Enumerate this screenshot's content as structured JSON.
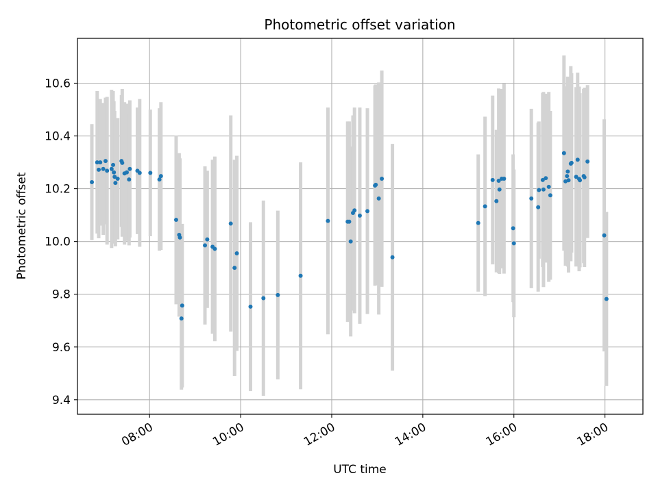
{
  "chart_data": {
    "type": "scatter",
    "title": "Photometric offset variation",
    "xlabel": "UTC time",
    "ylabel": "Photometric offset",
    "grid": true,
    "xlim": [
      "06:25",
      "18:50"
    ],
    "ylim": [
      9.345,
      10.77
    ],
    "xticks": [
      "08:00",
      "10:00",
      "12:00",
      "14:00",
      "16:00",
      "18:00"
    ],
    "yticks": [
      9.4,
      9.6,
      9.8,
      10.0,
      10.2,
      10.4,
      10.6
    ],
    "colors": {
      "point": "#1f77b4",
      "errorbar": "#d3d3d3",
      "grid": "#b0b0b0"
    },
    "points": [
      {
        "x": "06:44",
        "y": 10.225,
        "yerr": 0.22
      },
      {
        "x": "06:51",
        "y": 10.3,
        "yerr": 0.27
      },
      {
        "x": "06:53",
        "y": 10.272,
        "yerr": 0.26
      },
      {
        "x": "06:55",
        "y": 10.3,
        "yerr": 0.24
      },
      {
        "x": "06:59",
        "y": 10.275,
        "yerr": 0.25
      },
      {
        "x": "07:02",
        "y": 10.305,
        "yerr": 0.24
      },
      {
        "x": "07:04",
        "y": 10.268,
        "yerr": 0.28
      },
      {
        "x": "07:10",
        "y": 10.275,
        "yerr": 0.3
      },
      {
        "x": "07:12",
        "y": 10.29,
        "yerr": 0.28
      },
      {
        "x": "07:13",
        "y": 10.262,
        "yerr": 0.27
      },
      {
        "x": "07:14",
        "y": 10.245,
        "yerr": 0.25
      },
      {
        "x": "07:15",
        "y": 10.222,
        "yerr": 0.24
      },
      {
        "x": "07:18",
        "y": 10.238,
        "yerr": 0.23
      },
      {
        "x": "07:23",
        "y": 10.305,
        "yerr": 0.25
      },
      {
        "x": "07:24",
        "y": 10.298,
        "yerr": 0.28
      },
      {
        "x": "07:27",
        "y": 10.258,
        "yerr": 0.27
      },
      {
        "x": "07:30",
        "y": 10.262,
        "yerr": 0.26
      },
      {
        "x": "07:33",
        "y": 10.235,
        "yerr": 0.25
      },
      {
        "x": "07:34",
        "y": 10.275,
        "yerr": 0.26
      },
      {
        "x": "07:44",
        "y": 10.268,
        "yerr": 0.24
      },
      {
        "x": "07:47",
        "y": 10.26,
        "yerr": 0.28
      },
      {
        "x": "08:01",
        "y": 10.26,
        "yerr": 0.24
      },
      {
        "x": "08:13",
        "y": 10.235,
        "yerr": 0.27
      },
      {
        "x": "08:15",
        "y": 10.248,
        "yerr": 0.28
      },
      {
        "x": "08:35",
        "y": 10.082,
        "yerr": 0.32
      },
      {
        "x": "08:39",
        "y": 10.025,
        "yerr": 0.31
      },
      {
        "x": "08:40",
        "y": 10.015,
        "yerr": 0.3
      },
      {
        "x": "08:42",
        "y": 9.708,
        "yerr": 0.27
      },
      {
        "x": "08:43",
        "y": 9.757,
        "yerr": 0.31
      },
      {
        "x": "09:13",
        "y": 9.985,
        "yerr": 0.3
      },
      {
        "x": "09:16",
        "y": 10.008,
        "yerr": 0.26
      },
      {
        "x": "09:23",
        "y": 9.98,
        "yerr": 0.33
      },
      {
        "x": "09:26",
        "y": 9.972,
        "yerr": 0.35
      },
      {
        "x": "09:47",
        "y": 10.068,
        "yerr": 0.41
      },
      {
        "x": "09:52",
        "y": 9.9,
        "yerr": 0.41
      },
      {
        "x": "09:55",
        "y": 9.955,
        "yerr": 0.37
      },
      {
        "x": "10:13",
        "y": 9.753,
        "yerr": 0.32
      },
      {
        "x": "10:30",
        "y": 9.785,
        "yerr": 0.37
      },
      {
        "x": "10:49",
        "y": 9.797,
        "yerr": 0.32
      },
      {
        "x": "11:19",
        "y": 9.87,
        "yerr": 0.43
      },
      {
        "x": "11:55",
        "y": 10.078,
        "yerr": 0.43
      },
      {
        "x": "12:21",
        "y": 10.075,
        "yerr": 0.38
      },
      {
        "x": "12:23",
        "y": 10.075,
        "yerr": 0.38
      },
      {
        "x": "12:25",
        "y": 10.0,
        "yerr": 0.36
      },
      {
        "x": "12:28",
        "y": 10.108,
        "yerr": 0.37
      },
      {
        "x": "12:30",
        "y": 10.118,
        "yerr": 0.39
      },
      {
        "x": "12:37",
        "y": 10.098,
        "yerr": 0.41
      },
      {
        "x": "12:47",
        "y": 10.115,
        "yerr": 0.39
      },
      {
        "x": "12:57",
        "y": 10.212,
        "yerr": 0.38
      },
      {
        "x": "12:58",
        "y": 10.215,
        "yerr": 0.38
      },
      {
        "x": "13:02",
        "y": 10.163,
        "yerr": 0.44
      },
      {
        "x": "13:06",
        "y": 10.238,
        "yerr": 0.41
      },
      {
        "x": "13:20",
        "y": 9.94,
        "yerr": 0.43
      },
      {
        "x": "15:13",
        "y": 10.07,
        "yerr": 0.26
      },
      {
        "x": "15:22",
        "y": 10.133,
        "yerr": 0.34
      },
      {
        "x": "15:32",
        "y": 10.233,
        "yerr": 0.32
      },
      {
        "x": "15:37",
        "y": 10.153,
        "yerr": 0.27
      },
      {
        "x": "15:40",
        "y": 10.23,
        "yerr": 0.35
      },
      {
        "x": "15:41",
        "y": 10.197,
        "yerr": 0.32
      },
      {
        "x": "15:44",
        "y": 10.238,
        "yerr": 0.34
      },
      {
        "x": "15:47",
        "y": 10.238,
        "yerr": 0.36
      },
      {
        "x": "15:59",
        "y": 10.05,
        "yerr": 0.28
      },
      {
        "x": "16:00",
        "y": 9.993,
        "yerr": 0.28
      },
      {
        "x": "16:23",
        "y": 10.163,
        "yerr": 0.34
      },
      {
        "x": "16:32",
        "y": 10.13,
        "yerr": 0.32
      },
      {
        "x": "16:33",
        "y": 10.195,
        "yerr": 0.26
      },
      {
        "x": "16:38",
        "y": 10.233,
        "yerr": 0.33
      },
      {
        "x": "16:39",
        "y": 10.197,
        "yerr": 0.37
      },
      {
        "x": "16:42",
        "y": 10.24,
        "yerr": 0.32
      },
      {
        "x": "16:46",
        "y": 10.207,
        "yerr": 0.36
      },
      {
        "x": "16:48",
        "y": 10.175,
        "yerr": 0.32
      },
      {
        "x": "17:06",
        "y": 10.335,
        "yerr": 0.37
      },
      {
        "x": "17:08",
        "y": 10.228,
        "yerr": 0.32
      },
      {
        "x": "17:10",
        "y": 10.248,
        "yerr": 0.34
      },
      {
        "x": "17:11",
        "y": 10.265,
        "yerr": 0.36
      },
      {
        "x": "17:12",
        "y": 10.232,
        "yerr": 0.35
      },
      {
        "x": "17:15",
        "y": 10.295,
        "yerr": 0.37
      },
      {
        "x": "17:16",
        "y": 10.298,
        "yerr": 0.34
      },
      {
        "x": "17:22",
        "y": 10.245,
        "yerr": 0.34
      },
      {
        "x": "17:24",
        "y": 10.31,
        "yerr": 0.33
      },
      {
        "x": "17:26",
        "y": 10.237,
        "yerr": 0.35
      },
      {
        "x": "17:27",
        "y": 10.232,
        "yerr": 0.33
      },
      {
        "x": "17:32",
        "y": 10.248,
        "yerr": 0.33
      },
      {
        "x": "17:33",
        "y": 10.243,
        "yerr": 0.34
      },
      {
        "x": "17:37",
        "y": 10.303,
        "yerr": 0.29
      },
      {
        "x": "17:59",
        "y": 10.023,
        "yerr": 0.44
      },
      {
        "x": "18:02",
        "y": 9.782,
        "yerr": 0.33
      }
    ]
  }
}
